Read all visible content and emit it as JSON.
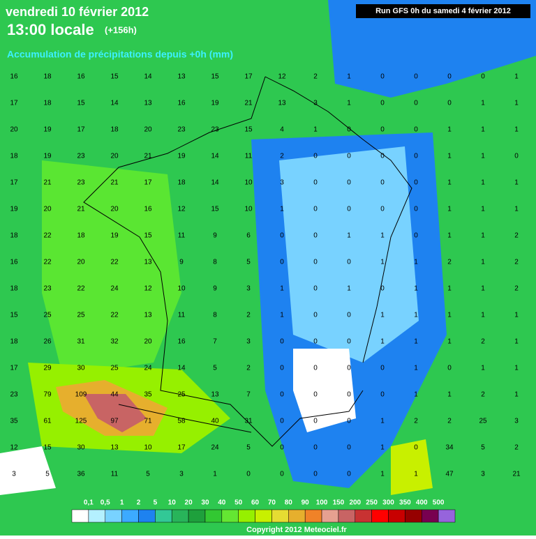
{
  "header": {
    "date": "vendredi 10 février 2012",
    "time": "13:00 locale",
    "lead": "(+156h)",
    "subtitle": "Accumulation de précipitations depuis +0h (mm)",
    "run": "Run GFS 0h du samedi 4 février 2012"
  },
  "map": {
    "rows": [
      [
        16,
        18,
        16,
        15,
        14,
        13,
        15,
        17,
        12,
        2,
        1,
        0,
        0,
        0,
        0,
        1
      ],
      [
        17,
        18,
        15,
        14,
        13,
        16,
        19,
        21,
        13,
        3,
        1,
        0,
        0,
        0,
        1,
        1
      ],
      [
        20,
        19,
        17,
        18,
        20,
        23,
        23,
        15,
        4,
        1,
        0,
        0,
        0,
        1,
        1,
        1
      ],
      [
        18,
        19,
        23,
        20,
        21,
        19,
        14,
        11,
        2,
        0,
        0,
        0,
        0,
        1,
        1,
        0
      ],
      [
        17,
        21,
        23,
        21,
        17,
        18,
        14,
        10,
        3,
        0,
        0,
        0,
        0,
        1,
        1,
        1
      ],
      [
        19,
        20,
        21,
        20,
        16,
        12,
        15,
        10,
        1,
        0,
        0,
        0,
        0,
        1,
        1,
        1
      ],
      [
        18,
        22,
        18,
        19,
        15,
        11,
        9,
        6,
        0,
        0,
        1,
        1,
        0,
        1,
        1,
        2
      ],
      [
        16,
        22,
        20,
        22,
        13,
        9,
        8,
        5,
        0,
        0,
        0,
        1,
        1,
        2,
        1,
        2
      ],
      [
        18,
        23,
        22,
        24,
        12,
        10,
        9,
        3,
        1,
        0,
        1,
        0,
        1,
        1,
        1,
        2
      ],
      [
        15,
        25,
        25,
        22,
        13,
        11,
        8,
        2,
        1,
        0,
        0,
        1,
        1,
        1,
        1,
        1
      ],
      [
        18,
        26,
        31,
        32,
        20,
        16,
        7,
        3,
        0,
        0,
        0,
        1,
        1,
        1,
        2,
        1
      ],
      [
        17,
        29,
        30,
        25,
        24,
        14,
        5,
        2,
        0,
        0,
        0,
        0,
        1,
        0,
        1,
        1
      ],
      [
        23,
        79,
        109,
        44,
        35,
        25,
        13,
        7,
        0,
        0,
        0,
        0,
        1,
        1,
        2,
        1
      ],
      [
        35,
        61,
        125,
        97,
        71,
        58,
        40,
        31,
        0,
        0,
        0,
        1,
        2,
        2,
        25,
        3
      ],
      [
        12,
        15,
        30,
        13,
        10,
        17,
        24,
        5,
        0,
        0,
        0,
        1,
        0,
        34,
        5,
        2
      ],
      [
        3,
        5,
        36,
        11,
        5,
        3,
        1,
        0,
        0,
        0,
        0,
        1,
        1,
        47,
        3,
        21
      ]
    ]
  },
  "legend": {
    "labels": [
      "0,1",
      "0,5",
      "1",
      "2",
      "5",
      "10",
      "20",
      "30",
      "40",
      "50",
      "60",
      "70",
      "80",
      "90",
      "100",
      "150",
      "200",
      "250",
      "300",
      "350",
      "400",
      "500"
    ],
    "colors": [
      "#ffffff",
      "#b4f0ff",
      "#78d2ff",
      "#3caaff",
      "#1e82f0",
      "#32c896",
      "#28b45a",
      "#1ea03c",
      "#32c832",
      "#64e632",
      "#96f000",
      "#c8f000",
      "#e6dc32",
      "#e6af2d",
      "#f08228",
      "#e6a090",
      "#c86464",
      "#c83232",
      "#ff0000",
      "#c80000",
      "#960000",
      "#780050",
      "#9664dc"
    ]
  },
  "footer": {
    "copyright": "Copyright 2012 Meteociel.fr"
  }
}
